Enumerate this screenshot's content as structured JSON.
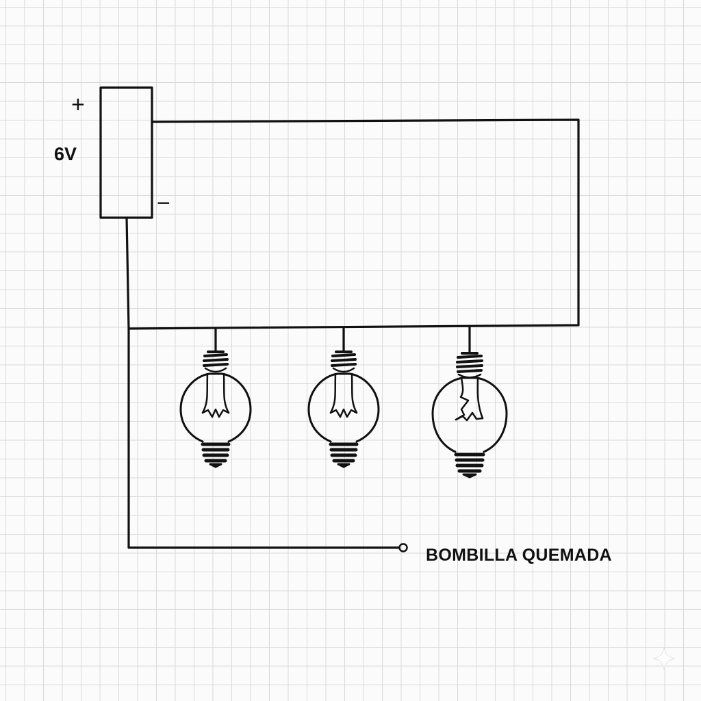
{
  "battery": {
    "voltage": "6V",
    "positive_sign": "+",
    "negative_sign": "−"
  },
  "bulbs": [
    {
      "state": "working"
    },
    {
      "state": "working"
    },
    {
      "state": "burnt"
    }
  ],
  "annotation": {
    "burnt_bulb_label": "BOMBILLA QUEMADA"
  },
  "colors": {
    "ink": "#111111",
    "paper": "#fbfbfb",
    "grid": "#d9d9d9"
  }
}
